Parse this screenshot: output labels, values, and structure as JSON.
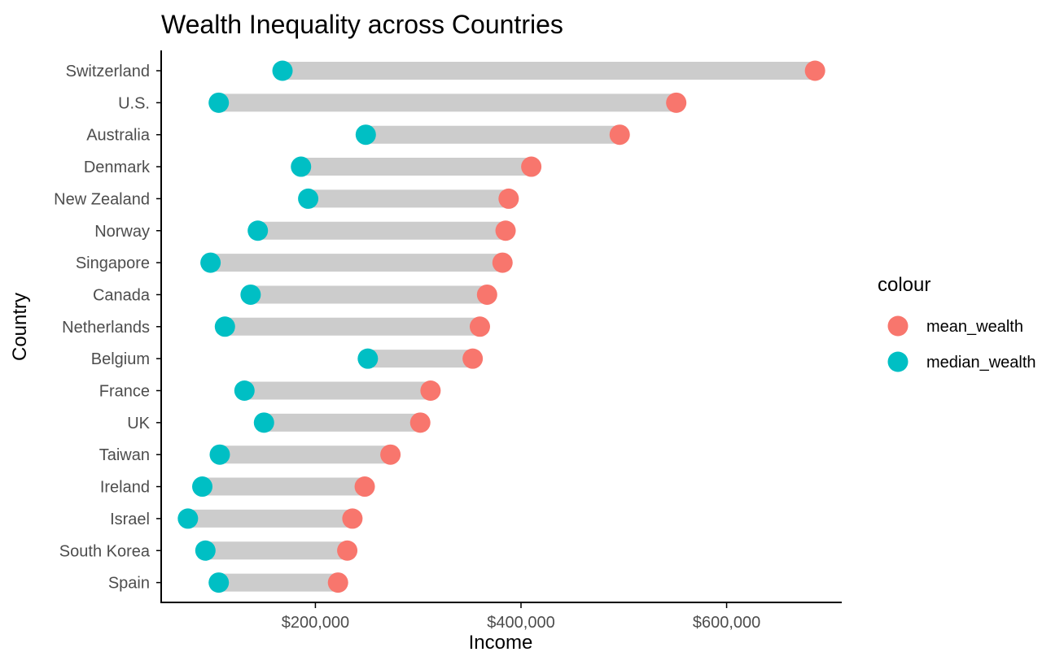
{
  "chart_data": {
    "type": "dumbbell",
    "title": "Wealth Inequality across Countries",
    "xlabel": "Income",
    "ylabel": "Country",
    "xlim": [
      50000,
      712000
    ],
    "xticks": [
      {
        "value": 200000,
        "label": "$200,000"
      },
      {
        "value": 400000,
        "label": "$400,000"
      },
      {
        "value": 600000,
        "label": "$600,000"
      }
    ],
    "categories": [
      "Switzerland",
      "U.S.",
      "Australia",
      "Denmark",
      "New Zealand",
      "Norway",
      "Singapore",
      "Canada",
      "Netherlands",
      "Belgium",
      "France",
      "UK",
      "Taiwan",
      "Ireland",
      "Israel",
      "South Korea",
      "Spain"
    ],
    "series": [
      {
        "name": "mean_wealth",
        "color": "#F8766D",
        "values": [
          686000,
          551000,
          496000,
          410000,
          388000,
          385000,
          382000,
          367000,
          360000,
          353000,
          312000,
          302000,
          273000,
          248000,
          236000,
          231000,
          222000
        ]
      },
      {
        "name": "median_wealth",
        "color": "#00BFC4",
        "values": [
          168000,
          106000,
          249000,
          186000,
          193000,
          144000,
          98000,
          137000,
          112000,
          251000,
          131000,
          150000,
          107000,
          90000,
          76000,
          93000,
          106000
        ]
      }
    ],
    "segment_color": "#cccccc",
    "legend": {
      "title": "colour",
      "position": "right"
    },
    "grid": false
  }
}
